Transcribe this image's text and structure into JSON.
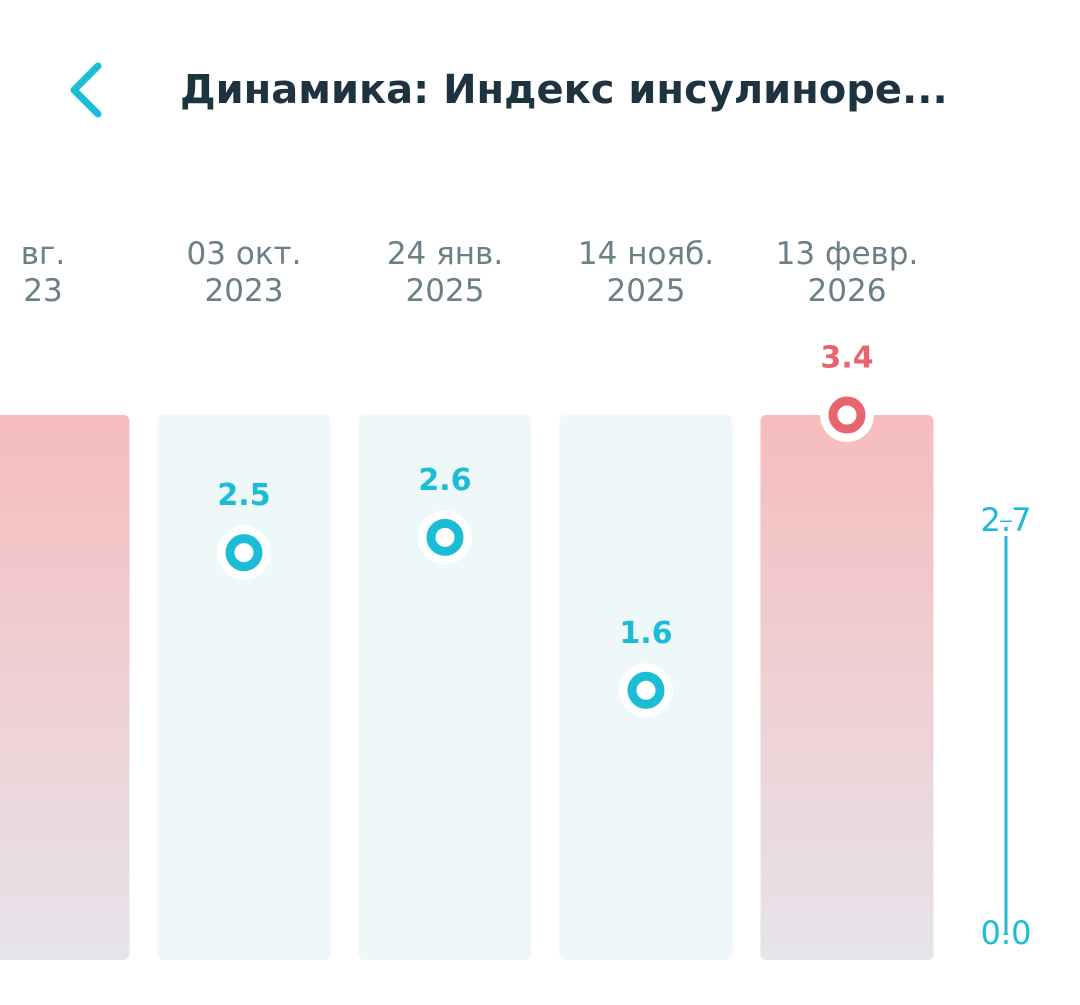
{
  "chart_data": {
    "type": "dot",
    "title": "Динамика: Индекс инсулиноре...",
    "categories": [
      "вг. 23",
      "03 окт. 2023",
      "24 янв. 2025",
      "14 нояб. 2025",
      "13 февр. 2026"
    ],
    "values": [
      null,
      2.5,
      2.6,
      1.6,
      3.4
    ],
    "colors": [
      "#e8656f",
      "#1bbcd6",
      "#1bbcd6",
      "#1bbcd6",
      "#e8656f"
    ],
    "ylim": [
      0,
      3.4
    ],
    "yticks": [
      {
        "value": 0,
        "label": "0.0"
      },
      2.7
    ],
    "axis_color": "#1bbcd6"
  }
}
